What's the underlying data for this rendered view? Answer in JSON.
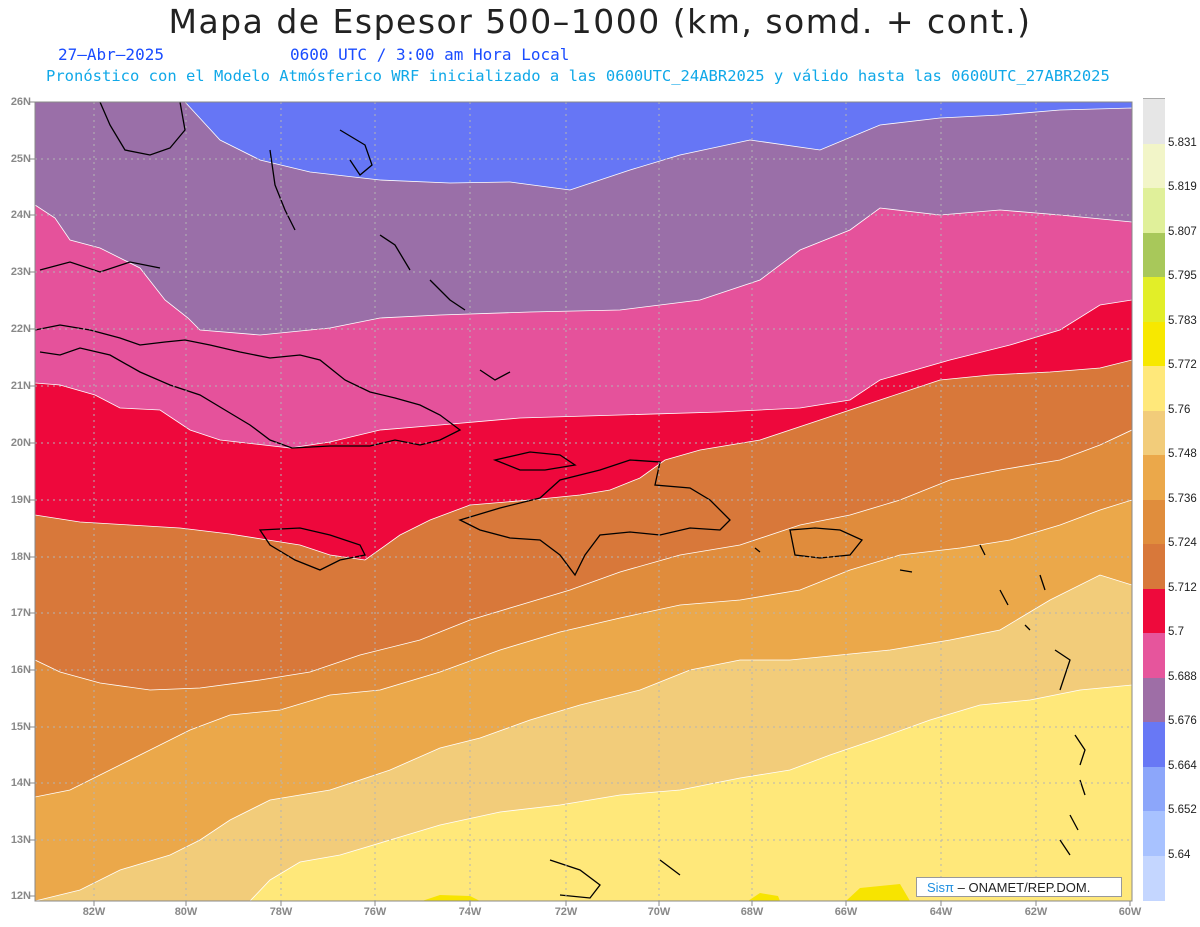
{
  "title": "Mapa de Espesor 500–1000 (km, somd. + cont.)",
  "date": "27–Abr–2025",
  "time": "0600 UTC / 3:00 am Hora Local",
  "model_line": "Pronóstico con el Modelo Atmósferico WRF inicializado a las 0600UTC_24ABR2025 y válido hasta las  0600UTC_27ABR2025",
  "credit": {
    "brand": "Sisπ",
    "text": "– ONAMET/REP.DOM."
  },
  "lat_labels": [
    "26N",
    "25N",
    "24N",
    "23N",
    "22N",
    "21N",
    "20N",
    "19N",
    "18N",
    "17N",
    "16N",
    "15N",
    "14N",
    "13N",
    "12N"
  ],
  "lon_labels": [
    "82W",
    "80W",
    "78W",
    "76W",
    "74W",
    "72W",
    "70W",
    "68W",
    "66W",
    "64W",
    "62W",
    "60W"
  ],
  "colorbar": {
    "levels": [
      "5.831",
      "5.819",
      "5.807",
      "5.795",
      "5.783",
      "5.772",
      "5.76",
      "5.748",
      "5.736",
      "5.724",
      "5.712",
      "5.7",
      "5.688",
      "5.676",
      "5.664",
      "5.652",
      "5.64"
    ],
    "colors": [
      "#e6e6e6",
      "#f2f5c8",
      "#e0f09a",
      "#a8c85a",
      "#e2ee28",
      "#f7e800",
      "#ffe87a",
      "#f2cc7a",
      "#eba84a",
      "#e08d3c",
      "#d8783a",
      "#ee0a3c",
      "#e6559c",
      "#9e6ea6",
      "#6878f5",
      "#8ca6fa",
      "#a8c2ff",
      "#c4d6ff"
    ]
  }
}
